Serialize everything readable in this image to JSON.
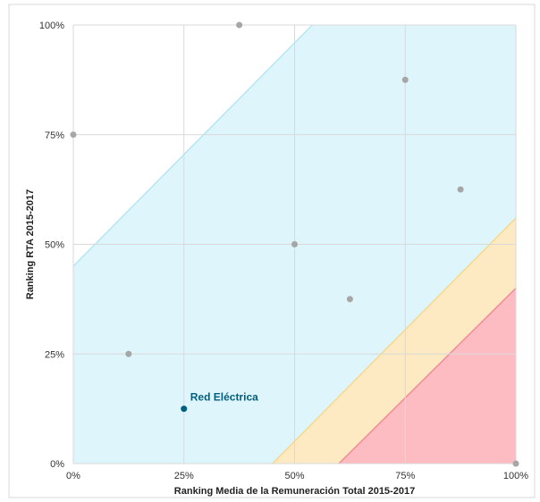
{
  "chart_data": {
    "type": "scatter",
    "xlabel": "Ranking Media de la Remuneración Total 2015-2017",
    "ylabel": "Ranking RTA 2015-2017",
    "xlim": [
      0,
      100
    ],
    "ylim": [
      0,
      100
    ],
    "x_ticks": [
      "0%",
      "25%",
      "50%",
      "75%",
      "100%"
    ],
    "y_ticks": [
      "0%",
      "25%",
      "50%",
      "75%",
      "100%"
    ],
    "grid": true,
    "legend": "none",
    "colors": {
      "zone_blue": "#dff5fc",
      "zone_blue_line": "#b5e6f5",
      "zone_yellow": "#fde9c2",
      "zone_yellow_line": "#f6d98e",
      "zone_red": "#fdbcc2",
      "zone_red_line": "#f48b98",
      "point_default": "#a6a6a6",
      "point_highlight": "#005f7f"
    },
    "zones": {
      "blue_upper_line": [
        [
          0,
          45
        ],
        [
          54,
          100
        ]
      ],
      "yellow_upper_line": [
        [
          45,
          0
        ],
        [
          100,
          56
        ]
      ],
      "red_upper_line": [
        [
          60,
          0
        ],
        [
          100,
          40
        ]
      ]
    },
    "points": [
      {
        "x": 0,
        "y": 75
      },
      {
        "x": 12.5,
        "y": 25
      },
      {
        "x": 25,
        "y": 12.5,
        "label": "Red Eléctrica",
        "highlight": true
      },
      {
        "x": 37.5,
        "y": 100
      },
      {
        "x": 50,
        "y": 50
      },
      {
        "x": 62.5,
        "y": 37.5
      },
      {
        "x": 75,
        "y": 87.5
      },
      {
        "x": 87.5,
        "y": 62.5
      },
      {
        "x": 100,
        "y": 0
      }
    ]
  }
}
